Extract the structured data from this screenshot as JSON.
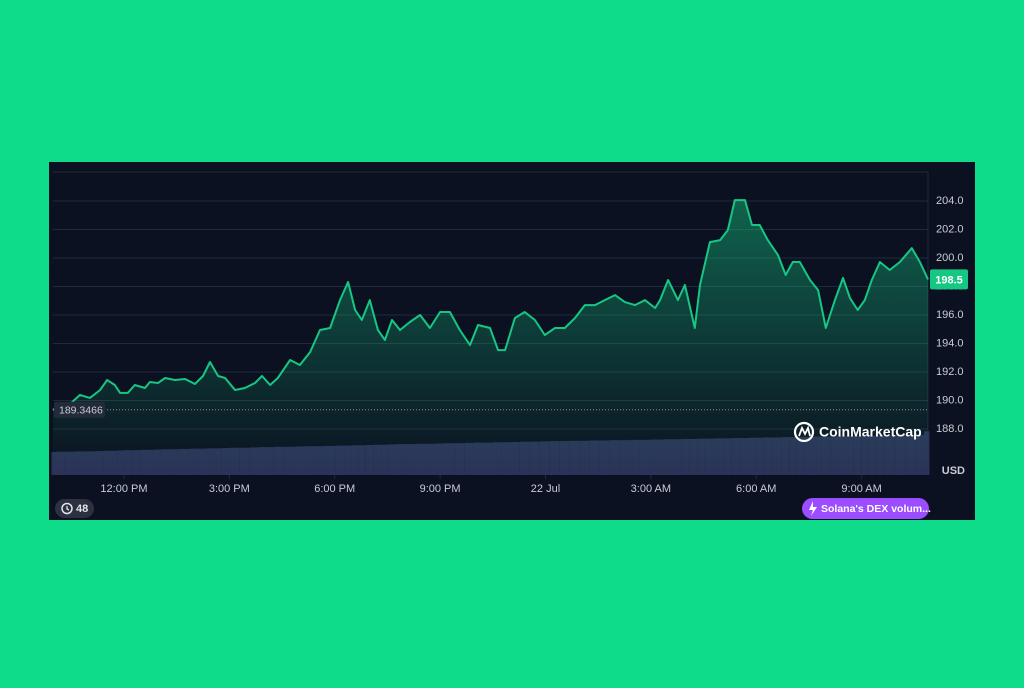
{
  "chart_data": {
    "type": "line",
    "color": "#16c784",
    "volume_color": "#2b3358",
    "xlim": [
      9.98,
      34.89
    ],
    "xticks": [
      {
        "value": 12,
        "label": "12:00 PM"
      },
      {
        "value": 15,
        "label": "3:00 PM"
      },
      {
        "value": 18,
        "label": "6:00 PM"
      },
      {
        "value": 21,
        "label": "9:00 PM"
      },
      {
        "value": 24,
        "label": "22 Jul"
      },
      {
        "value": 27,
        "label": "3:00 AM"
      },
      {
        "value": 30,
        "label": "6:00 AM"
      },
      {
        "value": 33,
        "label": "9:00 AM"
      }
    ],
    "ylim": [
      184.77,
      206.04
    ],
    "yticks": [
      {
        "value": 188,
        "label": "188.0"
      },
      {
        "value": 190,
        "label": "190.0"
      },
      {
        "value": 192,
        "label": "192.0"
      },
      {
        "value": 194,
        "label": "194.0"
      },
      {
        "value": 196,
        "label": "196.0"
      },
      {
        "value": 198,
        "label": "198.0"
      },
      {
        "value": 200,
        "label": "200.0"
      },
      {
        "value": 202,
        "label": "202.0"
      },
      {
        "value": 204,
        "label": "204.0"
      }
    ],
    "y2lim": [
      0,
      100
    ],
    "grid": true,
    "y_unit": "USD",
    "reference_price": 189.3466,
    "current_price": 198.5,
    "x": [
      9.98,
      10.18,
      10.46,
      10.75,
      11.03,
      11.32,
      11.52,
      11.74,
      11.89,
      12.11,
      12.31,
      12.6,
      12.74,
      12.97,
      13.17,
      13.45,
      13.74,
      14.02,
      14.25,
      14.45,
      14.68,
      14.88,
      15.16,
      15.44,
      15.73,
      15.93,
      16.16,
      16.38,
      16.73,
      17.01,
      17.3,
      17.58,
      17.87,
      18.15,
      18.38,
      18.58,
      18.77,
      19.0,
      19.23,
      19.43,
      19.63,
      19.86,
      20.14,
      20.43,
      20.71,
      21.0,
      21.28,
      21.56,
      21.85,
      22.08,
      22.42,
      22.65,
      22.85,
      23.13,
      23.41,
      23.7,
      23.98,
      24.27,
      24.55,
      24.84,
      25.12,
      25.41,
      25.69,
      25.98,
      26.26,
      26.55,
      26.83,
      27.12,
      27.26,
      27.49,
      27.77,
      27.97,
      28.25,
      28.4,
      28.68,
      28.97,
      29.19,
      29.39,
      29.68,
      29.88,
      30.1,
      30.33,
      30.62,
      30.84,
      31.04,
      31.24,
      31.53,
      31.76,
      31.98,
      32.24,
      32.47,
      32.67,
      32.89,
      33.09,
      33.29,
      33.52,
      33.8,
      34.09,
      34.43,
      34.66,
      34.89
    ],
    "values": [
      189.33,
      189.68,
      189.75,
      190.39,
      190.18,
      190.74,
      191.44,
      191.09,
      190.53,
      190.53,
      191.09,
      190.88,
      191.3,
      191.23,
      191.58,
      191.44,
      191.51,
      191.16,
      191.72,
      192.7,
      191.72,
      191.58,
      190.74,
      190.88,
      191.23,
      191.72,
      191.09,
      191.58,
      192.84,
      192.49,
      193.4,
      194.95,
      195.09,
      197.05,
      198.32,
      196.35,
      195.65,
      197.05,
      194.95,
      194.25,
      195.65,
      194.95,
      195.51,
      196.0,
      195.09,
      196.21,
      196.21,
      194.95,
      193.89,
      195.3,
      195.09,
      193.54,
      193.54,
      195.79,
      196.21,
      195.65,
      194.6,
      195.09,
      195.09,
      195.79,
      196.7,
      196.7,
      197.05,
      197.4,
      196.91,
      196.7,
      197.05,
      196.49,
      197.05,
      198.46,
      197.05,
      198.11,
      195.09,
      198.11,
      201.12,
      201.26,
      201.96,
      204.07,
      204.07,
      202.32,
      202.32,
      201.26,
      200.21,
      198.81,
      199.72,
      199.72,
      198.46,
      197.75,
      195.09,
      197.05,
      198.6,
      197.19,
      196.35,
      197.05,
      198.46,
      199.72,
      199.16,
      199.72,
      200.7,
      199.72,
      198.5
    ],
    "volume": [
      7.6,
      7.7,
      7.7,
      7.8,
      7.8,
      7.9,
      8.0,
      8.0,
      8.1,
      8.2,
      8.2,
      8.3,
      8.3,
      8.4,
      8.5,
      8.5,
      8.6,
      8.7,
      8.7,
      8.8,
      8.8,
      8.9,
      9.0,
      9.0,
      9.1,
      9.2,
      9.2,
      9.3,
      9.3,
      9.4,
      9.5,
      9.5,
      9.6,
      9.7,
      9.7,
      9.8,
      9.8,
      9.9,
      10.0,
      10.0,
      10.1,
      10.2,
      10.2,
      10.3,
      10.3,
      10.4,
      10.5,
      10.5,
      10.6,
      10.7,
      10.7,
      10.8,
      10.8,
      10.9,
      11.0,
      11.0,
      11.1,
      11.2,
      11.2,
      11.3,
      11.3,
      11.4,
      11.4,
      11.5,
      11.5,
      11.6,
      11.6,
      11.7,
      11.7,
      11.8,
      11.8,
      11.9,
      11.9,
      12.0,
      12.0,
      12.1,
      12.1,
      12.2,
      12.2,
      12.3,
      12.3,
      12.4,
      12.4,
      12.5,
      12.5,
      12.6,
      12.6,
      12.7,
      12.7,
      12.8,
      12.8,
      12.9,
      12.9,
      13.0,
      13.0,
      13.1,
      13.1,
      13.2,
      13.2,
      13.3,
      14.4
    ]
  },
  "ui": {
    "logo_text": "CoinMarketCap",
    "history_count": 48,
    "event_pill": "Solana's DEX volum..."
  }
}
